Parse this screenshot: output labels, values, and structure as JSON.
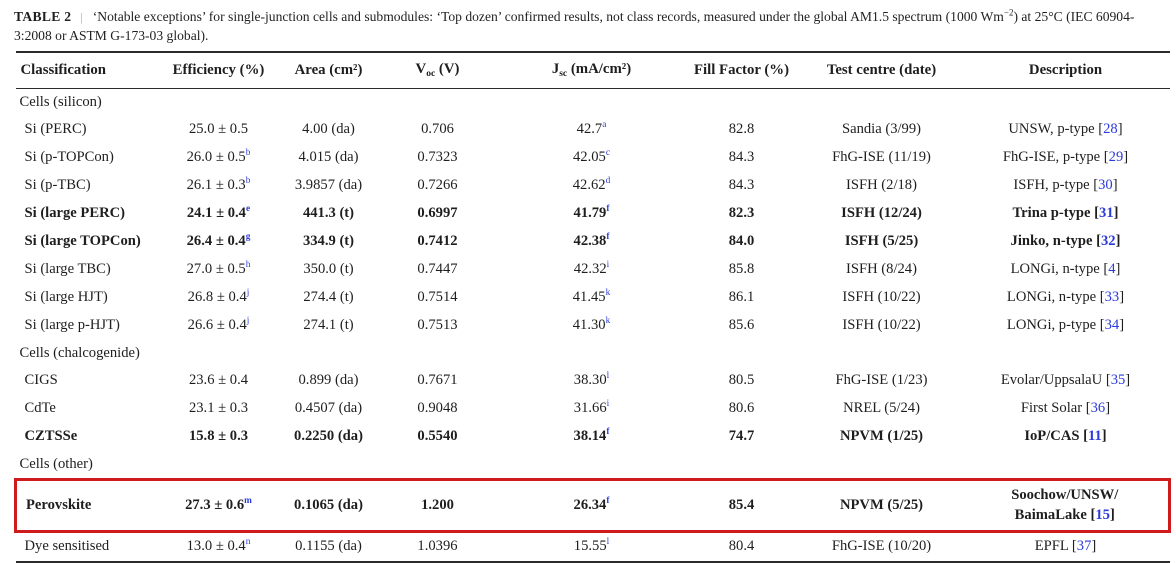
{
  "title": {
    "label": "TABLE 2",
    "separator": "|",
    "caption_pre": "‘Notable exceptions’ for single-junction cells and submodules: ‘Top dozen’ confirmed results, not class records, measured under the global AM1.5 spectrum (1000 Wm",
    "caption_sup": "−2",
    "caption_post": ") at 25°C (IEC 60904-3:2008 or ASTM G-173-03 global)."
  },
  "colors": {
    "link_blue": "#2b3bdb",
    "highlight_red": "#cf1b1b",
    "rule_dark": "#2b2b2b"
  },
  "table": {
    "columns": [
      {
        "label": "Classification"
      },
      {
        "label": "Efficiency (%)"
      },
      {
        "label": "Area (cm²)"
      },
      {
        "pre": "V",
        "sub": "oc",
        "post": " (V)"
      },
      {
        "pre": "J",
        "sub": "sc",
        "post": " (mA/cm²)"
      },
      {
        "label": "Fill Factor (%)"
      },
      {
        "label": "Test centre (date)"
      },
      {
        "label": "Description"
      }
    ],
    "rows": [
      {
        "type": "section",
        "label": "Cells (silicon)"
      },
      {
        "type": "data",
        "classification": "Si (PERC)",
        "efficiency": "25.0 ± 0.5",
        "eff_sup": "",
        "area": "4.00 (da)",
        "voc": "0.706",
        "jsc": "42.7",
        "jsc_sup": "a",
        "ff": "82.8",
        "centre": "Sandia (3/99)",
        "desc_lines": [
          "UNSW, p-type"
        ],
        "ref": "28"
      },
      {
        "type": "data",
        "classification": "Si (p-TOPCon)",
        "efficiency": "26.0 ± 0.5",
        "eff_sup": "b",
        "area": "4.015 (da)",
        "voc": "0.7323",
        "jsc": "42.05",
        "jsc_sup": "c",
        "ff": "84.3",
        "centre": "FhG-ISE (11/19)",
        "desc_lines": [
          "FhG-ISE, p-type"
        ],
        "ref": "29"
      },
      {
        "type": "data",
        "classification": "Si (p-TBC)",
        "efficiency": "26.1 ± 0.3",
        "eff_sup": "b",
        "area": "3.9857 (da)",
        "voc": "0.7266",
        "jsc": "42.62",
        "jsc_sup": "d",
        "ff": "84.3",
        "centre": "ISFH (2/18)",
        "desc_lines": [
          "ISFH, p-type"
        ],
        "ref": "30"
      },
      {
        "type": "data",
        "bold": true,
        "classification": "Si (large PERC)",
        "efficiency": "24.1 ± 0.4",
        "eff_sup": "e",
        "area": "441.3 (t)",
        "voc": "0.6997",
        "jsc": "41.79",
        "jsc_sup": "f",
        "ff": "82.3",
        "centre": "ISFH (12/24)",
        "desc_lines": [
          "Trina p-type"
        ],
        "ref": "31"
      },
      {
        "type": "data",
        "bold": true,
        "classification": "Si (large TOPCon)",
        "efficiency": "26.4 ± 0.4",
        "eff_sup": "g",
        "area": "334.9 (t)",
        "voc": "0.7412",
        "jsc": "42.38",
        "jsc_sup": "f",
        "ff": "84.0",
        "centre": "ISFH (5/25)",
        "desc_lines": [
          "Jinko, n-type"
        ],
        "ref": "32"
      },
      {
        "type": "data",
        "classification": "Si (large TBC)",
        "efficiency": "27.0 ± 0.5",
        "eff_sup": "h",
        "area": "350.0 (t)",
        "voc": "0.7447",
        "jsc": "42.32",
        "jsc_sup": "i",
        "ff": "85.8",
        "centre": "ISFH (8/24)",
        "desc_lines": [
          "LONGi, n-type"
        ],
        "ref": "4"
      },
      {
        "type": "data",
        "classification": "Si (large HJT)",
        "efficiency": "26.8 ± 0.4",
        "eff_sup": "j",
        "area": "274.4 (t)",
        "voc": "0.7514",
        "jsc": "41.45",
        "jsc_sup": "k",
        "ff": "86.1",
        "centre": "ISFH (10/22)",
        "desc_lines": [
          "LONGi, n-type"
        ],
        "ref": "33"
      },
      {
        "type": "data",
        "classification": "Si (large p-HJT)",
        "efficiency": "26.6 ± 0.4",
        "eff_sup": "j",
        "area": "274.1 (t)",
        "voc": "0.7513",
        "jsc": "41.30",
        "jsc_sup": "k",
        "ff": "85.6",
        "centre": "ISFH (10/22)",
        "desc_lines": [
          "LONGi, p-type"
        ],
        "ref": "34"
      },
      {
        "type": "section",
        "label": "Cells (chalcogenide)"
      },
      {
        "type": "data",
        "classification": "CIGS",
        "efficiency": "23.6 ± 0.4",
        "eff_sup": "",
        "area": "0.899 (da)",
        "voc": "0.7671",
        "jsc": "38.30",
        "jsc_sup": "l",
        "ff": "80.5",
        "centre": "FhG-ISE (1/23)",
        "desc_lines": [
          "Evolar/UppsalaU"
        ],
        "ref": "35"
      },
      {
        "type": "data",
        "classification": "CdTe",
        "efficiency": "23.1 ± 0.3",
        "eff_sup": "",
        "area": "0.4507 (da)",
        "voc": "0.9048",
        "jsc": "31.66",
        "jsc_sup": "i",
        "ff": "80.6",
        "centre": "NREL (5/24)",
        "desc_lines": [
          "First Solar"
        ],
        "ref": "36"
      },
      {
        "type": "data",
        "bold": true,
        "classification": "CZTSSe",
        "efficiency": "15.8 ± 0.3",
        "eff_sup": "",
        "area": "0.2250 (da)",
        "voc": "0.5540",
        "jsc": "38.14",
        "jsc_sup": "f",
        "ff": "74.7",
        "centre": "NPVM (1/25)",
        "desc_lines": [
          "IoP/CAS"
        ],
        "ref": "11"
      },
      {
        "type": "section",
        "label": "Cells (other)"
      },
      {
        "type": "data",
        "bold": true,
        "highlight": true,
        "classification": "Perovskite",
        "efficiency": "27.3 ± 0.6",
        "eff_sup": "m",
        "area": "0.1065 (da)",
        "voc": "1.200",
        "jsc": "26.34",
        "jsc_sup": "f",
        "ff": "85.4",
        "centre": "NPVM (5/25)",
        "desc_lines": [
          "Soochow/UNSW/",
          "BaimaLake"
        ],
        "ref": "15"
      },
      {
        "type": "data",
        "classification": "Dye sensitised",
        "efficiency": "13.0 ± 0.4",
        "eff_sup": "n",
        "area": "0.1155 (da)",
        "voc": "1.0396",
        "jsc": "15.55",
        "jsc_sup": "l",
        "ff": "80.4",
        "centre": "FhG-ISE (10/20)",
        "desc_lines": [
          "EPFL"
        ],
        "ref": "37"
      }
    ]
  }
}
